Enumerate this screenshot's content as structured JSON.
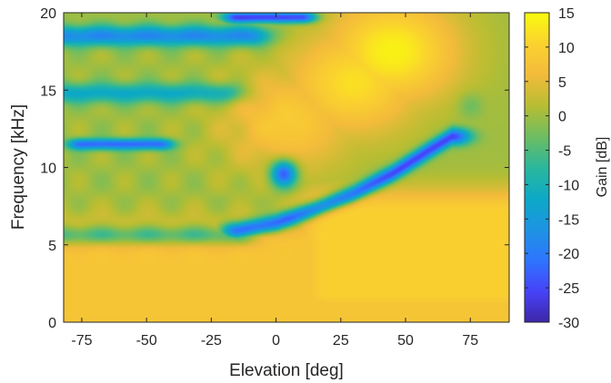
{
  "chart_data": {
    "type": "heatmap",
    "title": "",
    "xlabel": "Elevation [deg]",
    "ylabel": "Frequency [kHz]",
    "colorbar_label": "Gain [dB]",
    "xlim": [
      -82,
      90
    ],
    "ylim": [
      0,
      20
    ],
    "clim": [
      -30,
      15
    ],
    "xticks": [
      -75,
      -50,
      -25,
      0,
      25,
      50,
      75
    ],
    "yticks": [
      0,
      5,
      10,
      15,
      20
    ],
    "cticks": [
      15,
      10,
      5,
      0,
      -5,
      -10,
      -15,
      -20,
      -25,
      -30
    ],
    "colormap": "parula",
    "colormap_stops": [
      "#3e26a8",
      "#4743f9",
      "#2e75fe",
      "#1d94e3",
      "#0ca9c6",
      "#2bb79c",
      "#6ebd61",
      "#b8bd32",
      "#f3bb3b",
      "#fad22f",
      "#f9fb0e"
    ],
    "background_gain_db": 0,
    "features": [
      {
        "kind": "warm_region",
        "elevation": [
          -80,
          90
        ],
        "frequency": [
          0,
          5
        ],
        "peak_gain_db": 8
      },
      {
        "kind": "warm_region",
        "elevation": [
          20,
          90
        ],
        "frequency": [
          2,
          7
        ],
        "peak_gain_db": 10
      },
      {
        "kind": "hot_spot",
        "elevation": 45,
        "frequency": 17.5,
        "peak_gain_db": 14
      },
      {
        "kind": "hot_spot",
        "elevation": 30,
        "frequency": 15.5,
        "peak_gain_db": 12
      },
      {
        "kind": "hot_spot",
        "elevation": 5,
        "frequency": 13,
        "peak_gain_db": 9
      },
      {
        "kind": "notch_band",
        "elevation": [
          -80,
          -15
        ],
        "frequency": 5.6,
        "min_gain_db": -12
      },
      {
        "kind": "notch_curve",
        "points": [
          [
            -15,
            5.9
          ],
          [
            0,
            6.4
          ],
          [
            15,
            7.3
          ],
          [
            30,
            8.3
          ],
          [
            45,
            9.6
          ],
          [
            60,
            11.2
          ],
          [
            68,
            12
          ]
        ],
        "min_gain_db": -24
      },
      {
        "kind": "notch_line",
        "elevation": [
          -75,
          -45
        ],
        "frequency": 11.5,
        "min_gain_db": -22
      },
      {
        "kind": "notch_spot",
        "elevation": 3,
        "frequency": 9.6,
        "min_gain_db": -26
      },
      {
        "kind": "notch_band",
        "elevation": [
          -80,
          -20
        ],
        "frequency": 14.8,
        "min_gain_db": -12
      },
      {
        "kind": "notch_band",
        "elevation": [
          -80,
          -10
        ],
        "frequency": 18.5,
        "min_gain_db": -18
      },
      {
        "kind": "notch_line",
        "elevation": [
          -15,
          10
        ],
        "frequency": 19.7,
        "min_gain_db": -26
      },
      {
        "kind": "notch_spot",
        "elevation": 75,
        "frequency": 14,
        "min_gain_db": -4
      }
    ]
  }
}
